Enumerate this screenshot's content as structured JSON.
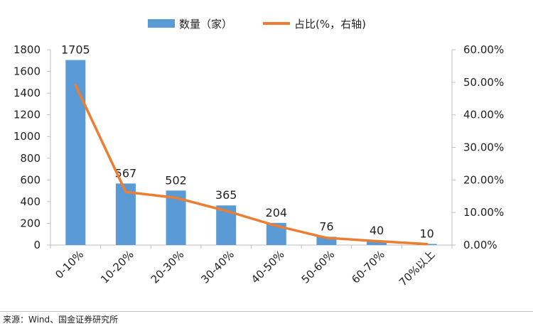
{
  "chart_data": {
    "type": "bar",
    "categories": [
      "0-10%",
      "10-20%",
      "20-30%",
      "30-40%",
      "40-50%",
      "50-60%",
      "60-70%",
      "70%以上"
    ],
    "series": [
      {
        "name": "数量（家）",
        "type": "bar",
        "axis": "left",
        "values": [
          1705,
          567,
          502,
          365,
          204,
          76,
          40,
          10
        ],
        "color": "#5b9bd5"
      },
      {
        "name": "占比(%，右轴)",
        "type": "line",
        "axis": "right",
        "values": [
          49.1,
          16.3,
          14.5,
          10.5,
          5.9,
          2.2,
          1.2,
          0.3
        ],
        "color": "#ed7d31"
      }
    ],
    "data_labels": [
      "1705",
      "567",
      "502",
      "365",
      "204",
      "76",
      "40",
      "10"
    ],
    "y_left": {
      "ticks": [
        "0",
        "200",
        "400",
        "600",
        "800",
        "1000",
        "1200",
        "1400",
        "1600",
        "1800"
      ],
      "lim": [
        0,
        1800
      ]
    },
    "y_right": {
      "ticks": [
        "0.00%",
        "10.00%",
        "20.00%",
        "30.00%",
        "40.00%",
        "50.00%",
        "60.00%"
      ],
      "lim": [
        0,
        60
      ]
    },
    "legend_position": "top-center",
    "grid": false
  },
  "source": "来源：Wind、国金证券研究所"
}
